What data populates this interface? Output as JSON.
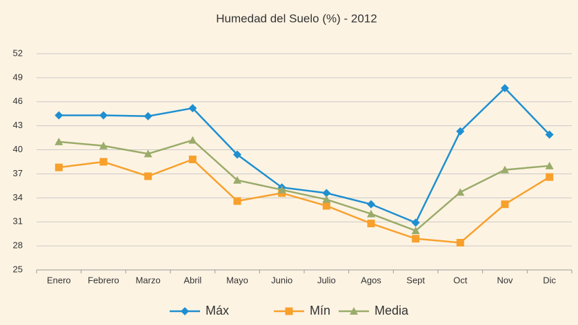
{
  "chart_data": {
    "type": "line",
    "title": "Humedad del Suelo (%) - 2012",
    "categories": [
      "Enero",
      "Febrero",
      "Marzo",
      "Abril",
      "Mayo",
      "Junio",
      "Julio",
      "Agos",
      "Sept",
      "Oct",
      "Nov",
      "Dic"
    ],
    "series": [
      {
        "name": "Máx",
        "color": "#1e8fd0",
        "marker": "diamond",
        "values": [
          44.3,
          44.3,
          44.2,
          45.2,
          39.4,
          35.3,
          34.6,
          33.2,
          30.9,
          42.3,
          47.7,
          41.9
        ]
      },
      {
        "name": "Mín",
        "color": "#f7a02c",
        "marker": "square",
        "values": [
          37.8,
          38.5,
          36.7,
          38.8,
          33.6,
          34.6,
          33.0,
          30.8,
          28.9,
          28.4,
          33.2,
          36.6
        ]
      },
      {
        "name": "Media",
        "color": "#9aab6a",
        "marker": "triangle",
        "values": [
          41.0,
          40.5,
          39.5,
          41.2,
          36.2,
          35.0,
          33.8,
          32.0,
          29.9,
          34.7,
          37.5,
          38.0
        ]
      }
    ],
    "ylim": [
      25,
      52
    ],
    "yticks": [
      25,
      28,
      31,
      34,
      37,
      40,
      43,
      46,
      49,
      52
    ],
    "grid": true,
    "legend": "bottom"
  }
}
